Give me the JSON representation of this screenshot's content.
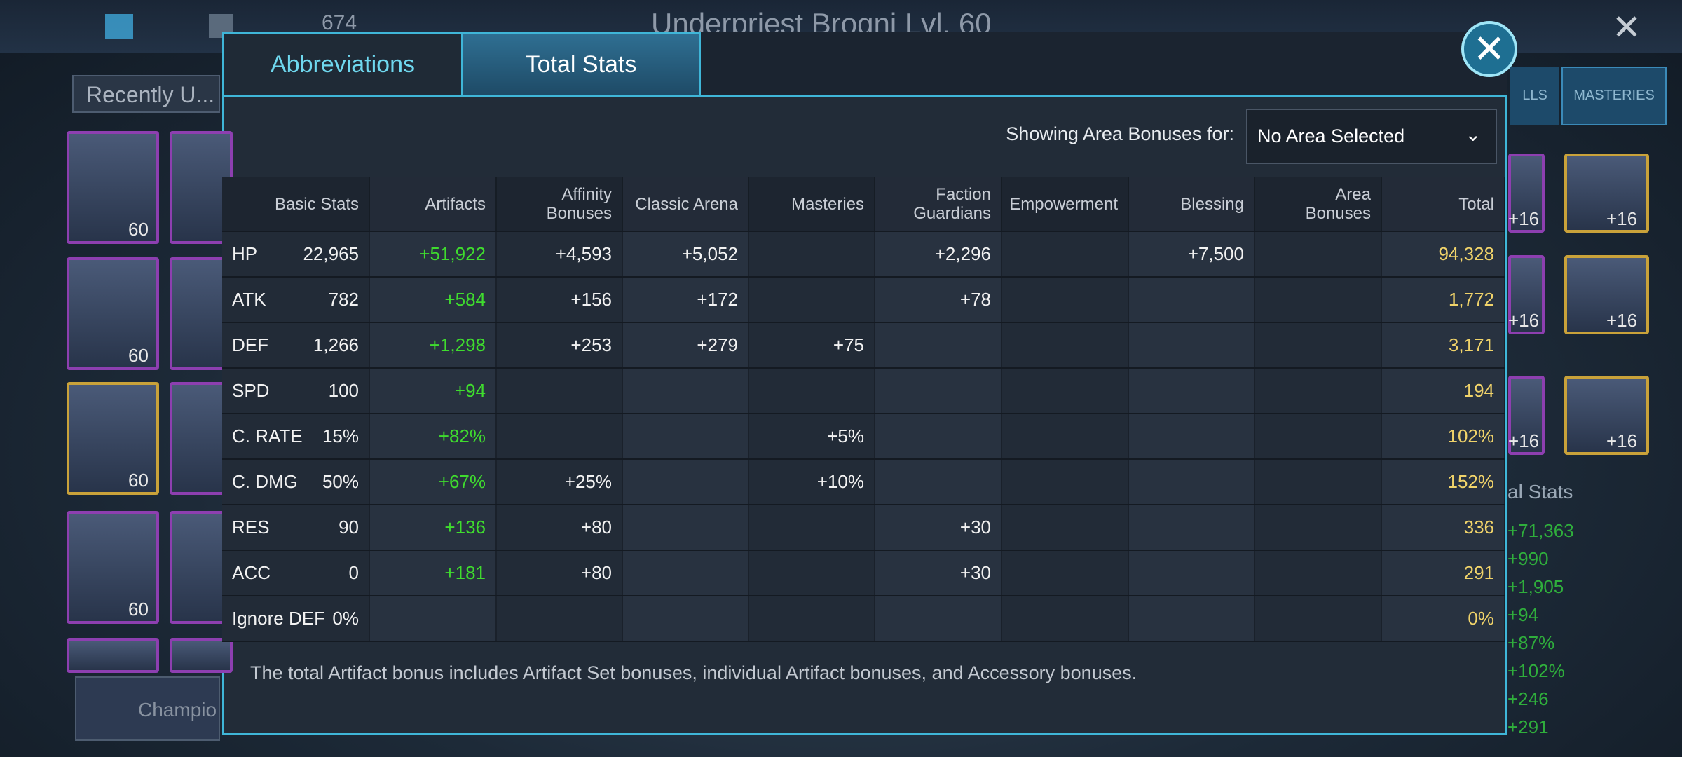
{
  "background": {
    "currency": "674",
    "champion": "Underpriest Brogni Lvl. 60",
    "filter": "Recently U...",
    "champions_button": "Champio",
    "side_tabs": [
      "LLS",
      "MASTERIES"
    ],
    "card_levels": [
      "60",
      "60",
      "60",
      "60"
    ],
    "right_card_levels": [
      "+16",
      "+16",
      "+16",
      "+16",
      "+16",
      "+16"
    ],
    "stats_title": "al Stats",
    "stats": [
      "+71,363",
      "+990",
      "+1,905",
      "+94",
      "+87%",
      "+102%",
      "+246",
      "+291"
    ]
  },
  "modal": {
    "tabs": [
      "Abbreviations",
      "Total Stats"
    ],
    "area_label": "Showing Area Bonuses for:",
    "area_value": "No Area Selected",
    "headers": [
      [
        "Basic Stats"
      ],
      [
        "Artifacts"
      ],
      [
        "Affinity",
        "Bonuses"
      ],
      [
        "Classic Arena"
      ],
      [
        "Masteries"
      ],
      [
        "Faction",
        "Guardians"
      ],
      [
        "Empowerment"
      ],
      [
        "Blessing"
      ],
      [
        "Area",
        "Bonuses"
      ],
      [
        "Total"
      ]
    ],
    "rows": [
      {
        "stat": "HP",
        "cells": [
          "22,965",
          "+51,922",
          "+4,593",
          "+5,052",
          null,
          "+2,296",
          null,
          "+7,500",
          null,
          "94,328"
        ]
      },
      {
        "stat": "ATK",
        "cells": [
          "782",
          "+584",
          "+156",
          "+172",
          null,
          "+78",
          null,
          null,
          null,
          "1,772"
        ]
      },
      {
        "stat": "DEF",
        "cells": [
          "1,266",
          "+1,298",
          "+253",
          "+279",
          "+75",
          null,
          null,
          null,
          null,
          "3,171"
        ]
      },
      {
        "stat": "SPD",
        "cells": [
          "100",
          "+94",
          null,
          null,
          null,
          null,
          null,
          null,
          null,
          "194"
        ]
      },
      {
        "stat": "C. RATE",
        "cells": [
          "15%",
          "+82%",
          null,
          null,
          "+5%",
          null,
          null,
          null,
          null,
          "102%"
        ]
      },
      {
        "stat": "C. DMG",
        "cells": [
          "50%",
          "+67%",
          "+25%",
          null,
          "+10%",
          null,
          null,
          null,
          null,
          "152%"
        ]
      },
      {
        "stat": "RES",
        "cells": [
          "90",
          "+136",
          "+80",
          null,
          null,
          "+30",
          null,
          null,
          null,
          "336"
        ]
      },
      {
        "stat": "ACC",
        "cells": [
          "0",
          "+181",
          "+80",
          null,
          null,
          "+30",
          null,
          null,
          null,
          "291"
        ]
      },
      {
        "stat": "Ignore DEF",
        "cells": [
          "0%",
          null,
          null,
          null,
          null,
          null,
          null,
          null,
          null,
          "0%"
        ]
      }
    ],
    "note": "The total Artifact bonus includes Artifact Set bonuses, individual Artifact bonuses, and Accessory bonuses."
  }
}
